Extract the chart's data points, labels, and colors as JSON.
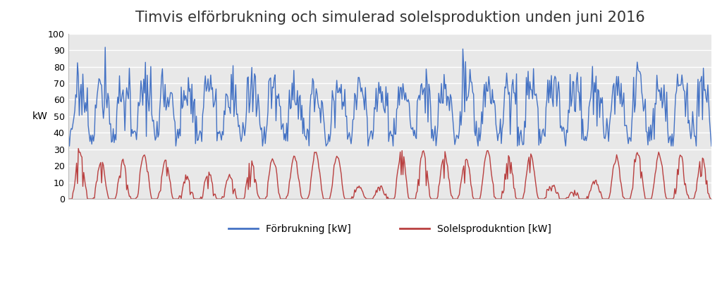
{
  "title": "Timvis elförbrukning och simulerad solelsproduktion unden juni 2016",
  "ylabel": "kW",
  "legend_consumption": "Förbrukning [kW]",
  "legend_solar": "Solelsprodukntion [kW]",
  "consumption_color": "#4472C4",
  "solar_color": "#B94040",
  "background_color": "#FFFFFF",
  "plot_bg_color": "#E8E8E8",
  "grid_color": "#FFFFFF",
  "ylim": [
    0,
    100
  ],
  "yticks": [
    0,
    10,
    20,
    30,
    40,
    50,
    60,
    70,
    80,
    90,
    100
  ],
  "title_fontsize": 15,
  "axis_fontsize": 10,
  "legend_fontsize": 10,
  "line_width": 1.0
}
